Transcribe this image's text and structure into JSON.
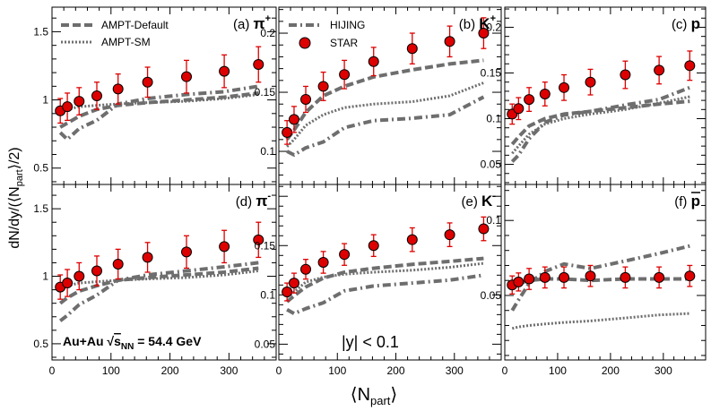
{
  "colors": {
    "model_line": "#6e6e6e",
    "marker_fill": "#dd0000",
    "error_bar": "#dd0000",
    "axis": "#000000"
  },
  "axis_titles": {
    "y": "dN/dy/(⟨N",
    "y_sub": "part",
    "y_end": "⟩/2)",
    "x": "⟨N",
    "x_sub": "part",
    "x_end": "⟩"
  },
  "legend": {
    "ampt_default": "AMPT-Default",
    "ampt_sm": "AMPT-SM",
    "hijing": "HIJING",
    "star": "STAR"
  },
  "annotations": {
    "system_prefix": "Au+Au",
    "sqrt": "√",
    "s": "s",
    "s_sub": "NN",
    "system_suffix": "= 54.4 GeV",
    "rapidity_cut": "|y| < 0.1"
  },
  "chart_data": [
    {
      "id": "a",
      "type": "line",
      "tag": "(a)",
      "particle": "π",
      "charge": "+",
      "xlim": [
        0,
        380
      ],
      "ylim": [
        0.38,
        1.68
      ],
      "yticks": [
        {
          "v": 0.5,
          "t": "0.5"
        },
        {
          "v": 1,
          "t": "1"
        },
        {
          "v": 1.5,
          "t": "1.5"
        }
      ],
      "xticks": [],
      "show_x_labels": false,
      "star": {
        "x": [
          14,
          26,
          46,
          76,
          112,
          162,
          228,
          292,
          350
        ],
        "y": [
          0.92,
          0.95,
          0.99,
          1.03,
          1.08,
          1.13,
          1.17,
          1.21,
          1.26
        ],
        "err": [
          0.09,
          0.1,
          0.1,
          0.1,
          0.11,
          0.11,
          0.12,
          0.12,
          0.13
        ]
      },
      "series": [
        {
          "name": "AMPT-Default",
          "style": "dash",
          "x": [
            14,
            26,
            46,
            76,
            112,
            162,
            228,
            292,
            350
          ],
          "y": [
            0.8,
            0.83,
            0.88,
            0.93,
            0.96,
            0.98,
            1.0,
            1.02,
            1.05
          ]
        },
        {
          "name": "AMPT-SM",
          "style": "dot",
          "x": [
            14,
            26,
            46,
            76,
            112,
            162,
            228,
            292,
            350
          ],
          "y": [
            0.91,
            0.93,
            0.95,
            0.96,
            0.97,
            0.98,
            0.99,
            1.01,
            1.04
          ]
        },
        {
          "name": "HIJING",
          "style": "dashdot",
          "x": [
            14,
            26,
            46,
            76,
            112,
            162,
            228,
            292,
            350
          ],
          "y": [
            0.76,
            0.71,
            0.79,
            0.85,
            0.97,
            1.01,
            1.04,
            1.06,
            1.1
          ]
        }
      ]
    },
    {
      "id": "b",
      "type": "line",
      "tag": "(b)",
      "particle": "K",
      "charge": "+",
      "xlim": [
        0,
        380
      ],
      "ylim": [
        0.072,
        0.222
      ],
      "yticks": [
        {
          "v": 0.1,
          "t": "0.1"
        },
        {
          "v": 0.15,
          "t": "0.15"
        },
        {
          "v": 0.2,
          "t": "0.2"
        }
      ],
      "xticks": [],
      "show_x_labels": false,
      "star": {
        "x": [
          14,
          26,
          46,
          76,
          112,
          162,
          228,
          292,
          350
        ],
        "y": [
          0.116,
          0.127,
          0.144,
          0.155,
          0.165,
          0.176,
          0.187,
          0.193,
          0.2
        ],
        "err": [
          0.01,
          0.011,
          0.011,
          0.012,
          0.012,
          0.012,
          0.013,
          0.013,
          0.013
        ]
      },
      "series": [
        {
          "name": "AMPT-Default",
          "style": "dash",
          "x": [
            14,
            26,
            46,
            76,
            112,
            162,
            228,
            292,
            350
          ],
          "y": [
            0.11,
            0.118,
            0.133,
            0.147,
            0.155,
            0.163,
            0.169,
            0.174,
            0.177
          ]
        },
        {
          "name": "AMPT-SM",
          "style": "dot",
          "x": [
            14,
            26,
            46,
            76,
            112,
            162,
            228,
            292,
            350
          ],
          "y": [
            0.104,
            0.11,
            0.122,
            0.131,
            0.137,
            0.14,
            0.142,
            0.147,
            0.158
          ]
        },
        {
          "name": "HIJING",
          "style": "dashdot",
          "x": [
            14,
            26,
            46,
            76,
            112,
            162,
            228,
            292,
            350
          ],
          "y": [
            0.1,
            0.097,
            0.103,
            0.108,
            0.12,
            0.126,
            0.128,
            0.131,
            0.146
          ]
        }
      ]
    },
    {
      "id": "c",
      "type": "line",
      "tag": "(c)",
      "particle": "p",
      "charge": "",
      "xlim": [
        0,
        380
      ],
      "ylim": [
        0.028,
        0.222
      ],
      "yticks": [
        {
          "v": 0.05,
          "t": "0.05"
        },
        {
          "v": 0.1,
          "t": "0.1"
        },
        {
          "v": 0.15,
          "t": "0.15"
        },
        {
          "v": 0.2,
          "t": "0.2"
        }
      ],
      "xticks": [],
      "show_x_labels": false,
      "star": {
        "x": [
          14,
          26,
          46,
          76,
          112,
          162,
          228,
          292,
          350
        ],
        "y": [
          0.105,
          0.111,
          0.121,
          0.127,
          0.134,
          0.14,
          0.148,
          0.153,
          0.158
        ],
        "err": [
          0.011,
          0.012,
          0.013,
          0.013,
          0.014,
          0.014,
          0.015,
          0.015,
          0.016
        ]
      },
      "series": [
        {
          "name": "AMPT-Default",
          "style": "dash",
          "x": [
            14,
            26,
            46,
            76,
            112,
            162,
            228,
            292,
            350
          ],
          "y": [
            0.072,
            0.08,
            0.092,
            0.1,
            0.105,
            0.108,
            0.112,
            0.116,
            0.119
          ]
        },
        {
          "name": "AMPT-SM",
          "style": "dot",
          "x": [
            14,
            26,
            46,
            76,
            112,
            162,
            228,
            292,
            350
          ],
          "y": [
            0.062,
            0.07,
            0.083,
            0.094,
            0.1,
            0.105,
            0.11,
            0.117,
            0.124
          ]
        },
        {
          "name": "HIJING",
          "style": "dashdot",
          "x": [
            14,
            26,
            46,
            76,
            112,
            162,
            228,
            292,
            350
          ],
          "y": [
            0.053,
            0.06,
            0.078,
            0.096,
            0.104,
            0.108,
            0.115,
            0.121,
            0.134
          ]
        }
      ]
    },
    {
      "id": "d",
      "type": "line",
      "tag": "(d)",
      "particle": "π",
      "charge": "-",
      "xlim": [
        0,
        380
      ],
      "ylim": [
        0.38,
        1.68
      ],
      "yticks": [
        {
          "v": 0.5,
          "t": "0.5"
        },
        {
          "v": 1,
          "t": "1"
        },
        {
          "v": 1.5,
          "t": "1.5"
        }
      ],
      "xticks": [
        {
          "v": 0,
          "t": "0"
        },
        {
          "v": 100,
          "t": "100"
        },
        {
          "v": 200,
          "t": "200"
        },
        {
          "v": 300,
          "t": "300"
        }
      ],
      "show_x_labels": true,
      "star": {
        "x": [
          14,
          26,
          46,
          76,
          112,
          162,
          228,
          292,
          350
        ],
        "y": [
          0.92,
          0.95,
          1.0,
          1.04,
          1.09,
          1.14,
          1.18,
          1.22,
          1.27
        ],
        "err": [
          0.09,
          0.1,
          0.1,
          0.11,
          0.11,
          0.11,
          0.12,
          0.12,
          0.13
        ]
      },
      "series": [
        {
          "name": "AMPT-Default",
          "style": "dash",
          "x": [
            14,
            26,
            46,
            76,
            112,
            162,
            228,
            292,
            350
          ],
          "y": [
            0.8,
            0.84,
            0.89,
            0.93,
            0.97,
            0.99,
            1.01,
            1.03,
            1.06
          ]
        },
        {
          "name": "AMPT-SM",
          "style": "dot",
          "x": [
            14,
            26,
            46,
            76,
            112,
            162,
            228,
            292,
            350
          ],
          "y": [
            0.91,
            0.93,
            0.95,
            0.96,
            0.97,
            0.98,
            0.99,
            1.01,
            1.04
          ]
        },
        {
          "name": "HIJING",
          "style": "dashdot",
          "x": [
            14,
            26,
            46,
            76,
            112,
            162,
            228,
            292,
            350
          ],
          "y": [
            0.67,
            0.71,
            0.79,
            0.86,
            0.97,
            1.01,
            1.04,
            1.07,
            1.1
          ]
        }
      ]
    },
    {
      "id": "e",
      "type": "line",
      "tag": "(e)",
      "particle": "K",
      "charge": "-",
      "xlim": [
        0,
        380
      ],
      "ylim": [
        0.034,
        0.212
      ],
      "yticks": [
        {
          "v": 0.05,
          "t": "0.05"
        },
        {
          "v": 0.1,
          "t": "0.1"
        },
        {
          "v": 0.15,
          "t": "0.15"
        }
      ],
      "xticks": [
        {
          "v": 0,
          "t": "0"
        },
        {
          "v": 100,
          "t": "100"
        },
        {
          "v": 200,
          "t": "200"
        },
        {
          "v": 300,
          "t": "300"
        }
      ],
      "show_x_labels": true,
      "star": {
        "x": [
          14,
          26,
          46,
          76,
          112,
          162,
          228,
          292,
          350
        ],
        "y": [
          0.103,
          0.112,
          0.126,
          0.133,
          0.141,
          0.15,
          0.156,
          0.161,
          0.167
        ],
        "err": [
          0.009,
          0.01,
          0.01,
          0.011,
          0.011,
          0.011,
          0.012,
          0.012,
          0.012
        ]
      },
      "series": [
        {
          "name": "AMPT-Default",
          "style": "dash",
          "x": [
            14,
            26,
            46,
            76,
            112,
            162,
            228,
            292,
            350
          ],
          "y": [
            0.093,
            0.099,
            0.108,
            0.117,
            0.123,
            0.127,
            0.131,
            0.134,
            0.137
          ]
        },
        {
          "name": "AMPT-SM",
          "style": "dot",
          "x": [
            14,
            26,
            46,
            76,
            112,
            162,
            228,
            292,
            350
          ],
          "y": [
            0.098,
            0.103,
            0.113,
            0.118,
            0.121,
            0.123,
            0.125,
            0.128,
            0.132
          ]
        },
        {
          "name": "HIJING",
          "style": "dashdot",
          "x": [
            14,
            26,
            46,
            76,
            112,
            162,
            228,
            292,
            350
          ],
          "y": [
            0.085,
            0.081,
            0.086,
            0.092,
            0.104,
            0.109,
            0.112,
            0.115,
            0.12
          ]
        }
      ]
    },
    {
      "id": "f",
      "type": "line",
      "tag": "(f)",
      "particle": "p",
      "charge": "",
      "bar": true,
      "xlim": [
        0,
        380
      ],
      "ylim": [
        0.007,
        0.124
      ],
      "yticks": [
        {
          "v": 0.05,
          "t": "0.05"
        },
        {
          "v": 0.1,
          "t": "0.1"
        }
      ],
      "xticks": [
        {
          "v": 0,
          "t": "0"
        },
        {
          "v": 100,
          "t": "100"
        },
        {
          "v": 200,
          "t": "200"
        },
        {
          "v": 300,
          "t": "300"
        }
      ],
      "show_x_labels": true,
      "star": {
        "x": [
          14,
          26,
          46,
          76,
          112,
          162,
          228,
          292,
          350
        ],
        "y": [
          0.057,
          0.059,
          0.061,
          0.062,
          0.062,
          0.063,
          0.062,
          0.062,
          0.063
        ],
        "err": [
          0.006,
          0.006,
          0.007,
          0.007,
          0.007,
          0.007,
          0.007,
          0.007,
          0.007
        ]
      },
      "series": [
        {
          "name": "AMPT-Default",
          "style": "dash",
          "x": [
            14,
            26,
            46,
            76,
            112,
            162,
            228,
            292,
            350
          ],
          "y": [
            0.055,
            0.058,
            0.06,
            0.061,
            0.061,
            0.06,
            0.061,
            0.061,
            0.061
          ]
        },
        {
          "name": "AMPT-SM",
          "style": "dot",
          "x": [
            14,
            26,
            46,
            76,
            112,
            162,
            228,
            292,
            350
          ],
          "y": [
            0.028,
            0.029,
            0.03,
            0.031,
            0.032,
            0.033,
            0.035,
            0.037,
            0.038
          ]
        },
        {
          "name": "HIJING",
          "style": "dashdot",
          "x": [
            14,
            26,
            46,
            76,
            112,
            162,
            228,
            292,
            350
          ],
          "y": [
            0.04,
            0.047,
            0.058,
            0.066,
            0.071,
            0.068,
            0.073,
            0.078,
            0.083
          ]
        }
      ]
    }
  ]
}
